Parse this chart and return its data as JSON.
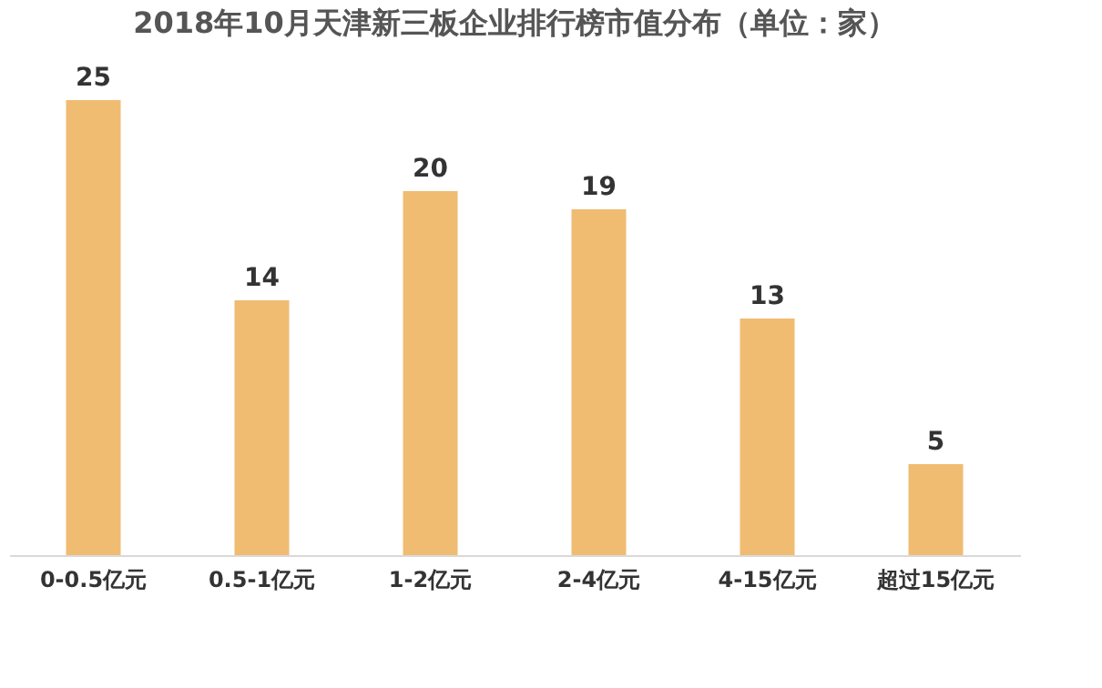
{
  "chart_data": {
    "type": "bar",
    "title": "2018年10月天津新三板企业排行榜市值分布（单位：家）",
    "categories": [
      "0-0.5亿元",
      "0.5-1亿元",
      "1-2亿元",
      "2-4亿元",
      "4-15亿元",
      "超过15亿元"
    ],
    "values": [
      25,
      14,
      20,
      19,
      13,
      5
    ],
    "color": "#f0bc72",
    "data_labels": true,
    "grid": false,
    "tick_labels": "x"
  }
}
